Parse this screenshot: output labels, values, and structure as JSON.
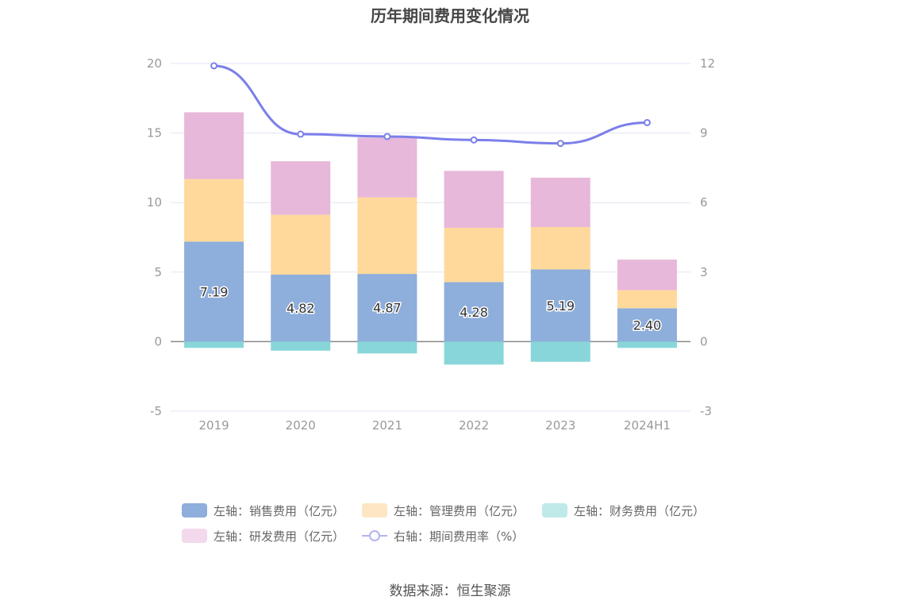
{
  "title": "历年期间费用变化情况",
  "source": "数据来源：恒生聚源",
  "colors": {
    "sales": "#8eaedb",
    "admin": "#ffd99b",
    "finance": "#88d6d9",
    "rd": "#e7b8da",
    "rate": "#7b7fea",
    "grid": "#e3e5f4",
    "axis_text": "#999999"
  },
  "legend": [
    {
      "label": "左轴：销售费用（亿元）",
      "color": "#8eaedb",
      "kind": "box"
    },
    {
      "label": "左轴：管理费用（亿元）",
      "color": "#fde6c4",
      "kind": "box"
    },
    {
      "label": "左轴：财务费用（亿元）",
      "color": "#c0e9ea",
      "kind": "box"
    },
    {
      "label": "左轴：研发费用（亿元）",
      "color": "#f3d9ec",
      "kind": "box"
    },
    {
      "label": "右轴：期间费用率（%）",
      "color": "#b3b6f0",
      "kind": "line"
    }
  ],
  "chart_data": {
    "type": "bar",
    "stacked": true,
    "categories": [
      "2019",
      "2020",
      "2021",
      "2022",
      "2023",
      "2024H1"
    ],
    "left_axis": {
      "ylim": [
        -5,
        20
      ],
      "ticks": [
        "-5",
        "0",
        "5",
        "10",
        "15",
        "20"
      ]
    },
    "right_axis": {
      "ylim": [
        -3,
        12
      ],
      "ticks": [
        "-3",
        "0",
        "3",
        "6",
        "9",
        "12"
      ]
    },
    "series": [
      {
        "name": "左轴：销售费用（亿元）",
        "axis": "left",
        "values": [
          7.19,
          4.82,
          4.87,
          4.28,
          5.19,
          2.4
        ],
        "labels": [
          "7.19",
          "4.82",
          "4.87",
          "4.28",
          "5.19",
          "2.40"
        ]
      },
      {
        "name": "左轴：管理费用（亿元）",
        "axis": "left",
        "values": [
          4.5,
          4.3,
          5.5,
          3.9,
          3.05,
          1.3
        ]
      },
      {
        "name": "左轴：财务费用（亿元）",
        "axis": "left",
        "values": [
          -0.45,
          -0.65,
          -0.85,
          -1.65,
          -1.45,
          -0.45
        ]
      },
      {
        "name": "左轴：研发费用（亿元）",
        "axis": "left",
        "values": [
          4.8,
          3.85,
          4.3,
          4.1,
          3.55,
          2.2
        ]
      },
      {
        "name": "右轴：期间费用率（%）",
        "axis": "right",
        "type": "line",
        "values": [
          11.9,
          8.95,
          8.85,
          8.7,
          8.55,
          9.45
        ]
      }
    ],
    "grid": true,
    "legend_position": "bottom"
  }
}
